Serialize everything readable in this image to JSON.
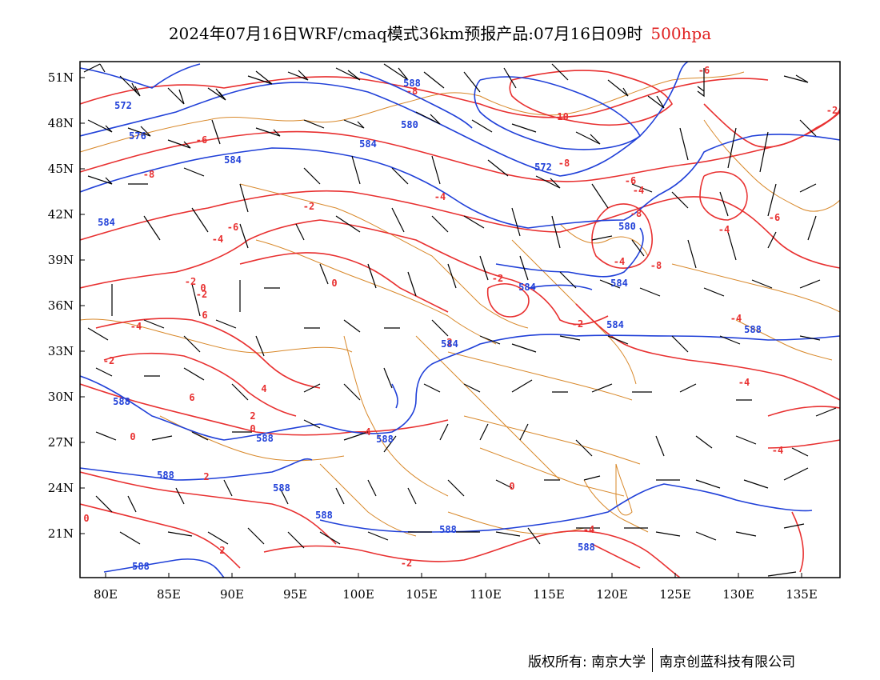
{
  "header": {
    "title": "2024年07月16日WRF/cmaq模式36km预报产品:07月16日09时",
    "level": "500hpa"
  },
  "axes": {
    "lat_labels": [
      "51N",
      "48N",
      "45N",
      "42N",
      "39N",
      "36N",
      "33N",
      "30N",
      "27N",
      "24N",
      "21N"
    ],
    "lon_labels": [
      "80E",
      "85E",
      "90E",
      "95E",
      "100E",
      "105E",
      "110E",
      "115E",
      "120E",
      "125E",
      "130E",
      "135E"
    ]
  },
  "colors": {
    "temperature": "#e83030",
    "height": "#2040d8",
    "boundary": "#d8882a",
    "wind": "#000000"
  },
  "map": {
    "temperature_labels": [
      "-6",
      "-8",
      "-10",
      "-8",
      "-6",
      "-8",
      "-6",
      "-4",
      "-4",
      "-6",
      "-4",
      "-2",
      "-8",
      "-4",
      "-6",
      "-4",
      "0",
      "-2",
      "-2",
      "0",
      "-4",
      "-2",
      "6",
      "4",
      "2",
      "-2",
      "2",
      "0",
      "4",
      "6",
      "2",
      "0",
      "0",
      "2",
      "0",
      "-2",
      "-4",
      "-2",
      "-2",
      "-4",
      "-4",
      "-4",
      "-8",
      "0"
    ],
    "height_labels": [
      "572",
      "576",
      "580",
      "584",
      "584",
      "584",
      "584",
      "572",
      "580",
      "584",
      "584",
      "588",
      "588",
      "588",
      "588",
      "588",
      "588",
      "588",
      "588",
      "588",
      "588",
      "584",
      "588"
    ]
  },
  "footer": {
    "copyright_left": "版权所有: 南京大学",
    "copyright_right": "南京创蓝科技有限公司"
  }
}
